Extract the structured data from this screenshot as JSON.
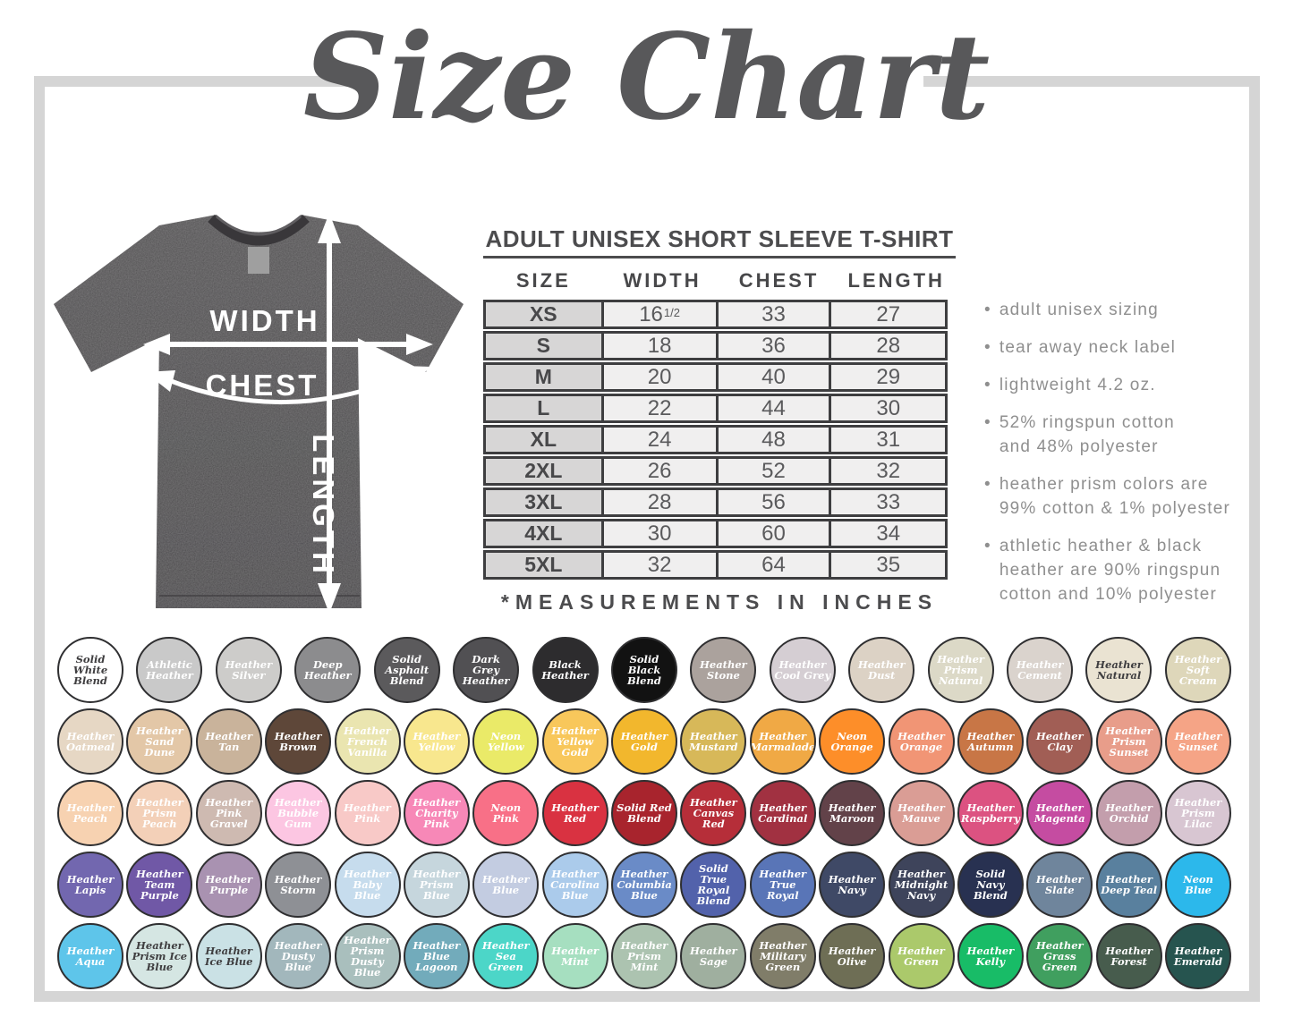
{
  "title": "Size Chart",
  "frame_color": "#d5d5d5",
  "diagram": {
    "width_label": "WIDTH",
    "chest_label": "CHEST",
    "length_label": "LENGTH"
  },
  "size_table": {
    "heading": "ADULT UNISEX SHORT SLEEVE T-SHIRT",
    "columns": [
      "SIZE",
      "WIDTH",
      "CHEST",
      "LENGTH"
    ],
    "rows": [
      [
        "XS",
        "16^1/2",
        "33",
        "27"
      ],
      [
        "S",
        "18",
        "36",
        "28"
      ],
      [
        "M",
        "20",
        "40",
        "29"
      ],
      [
        "L",
        "22",
        "44",
        "30"
      ],
      [
        "XL",
        "24",
        "48",
        "31"
      ],
      [
        "2XL",
        "26",
        "52",
        "32"
      ],
      [
        "3XL",
        "28",
        "56",
        "33"
      ],
      [
        "4XL",
        "30",
        "60",
        "34"
      ],
      [
        "5XL",
        "32",
        "64",
        "35"
      ]
    ],
    "footnote": "*MEASUREMENTS IN INCHES"
  },
  "features": [
    "adult unisex sizing",
    "tear away neck label",
    "lightweight 4.2 oz.",
    "52% ringspun cotton\nand 48% polyester",
    "heather prism colors are\n99% cotton & 1% polyester",
    "athletic heather &  black\nheather are 90% ringspun\ncotton and 10% polyester"
  ],
  "swatch_rows": [
    [
      {
        "n": "Solid White Blend",
        "c": "#ffffff",
        "t": "dark"
      },
      {
        "n": "Athletic Heather",
        "c": "#c9c9c9"
      },
      {
        "n": "Heather Silver",
        "c": "#cdccca"
      },
      {
        "n": "Deep Heather",
        "c": "#8c8c8e"
      },
      {
        "n": "Solid Asphalt Blend",
        "c": "#5b5a5c"
      },
      {
        "n": "Dark Grey Heather",
        "c": "#515053"
      },
      {
        "n": "Black Heather",
        "c": "#2d2c2e"
      },
      {
        "n": "Solid Black Blend",
        "c": "#121212"
      },
      {
        "n": "Heather Stone",
        "c": "#aba29d"
      },
      {
        "n": "Heather Cool Grey",
        "c": "#d5ced3"
      },
      {
        "n": "Heather Dust",
        "c": "#dcd2c5"
      },
      {
        "n": "Heather Prism Natural",
        "c": "#dcd9c7"
      },
      {
        "n": "Heather Cement",
        "c": "#dad3cd"
      },
      {
        "n": "Heather Natural",
        "c": "#eae3d2",
        "t": "dark"
      },
      {
        "n": "Heather Soft Cream",
        "c": "#ded7ba"
      }
    ],
    [
      {
        "n": "Heather Oatmeal",
        "c": "#e6d7c4"
      },
      {
        "n": "Heather Sand Dune",
        "c": "#e3c7a7"
      },
      {
        "n": "Heather Tan",
        "c": "#c9b39b"
      },
      {
        "n": "Heather Brown",
        "c": "#5e4739"
      },
      {
        "n": "Heather French Vanilla",
        "c": "#eae5b0"
      },
      {
        "n": "Heather Yellow",
        "c": "#f8e78e"
      },
      {
        "n": "Neon Yellow",
        "c": "#eaea68"
      },
      {
        "n": "Heather Yellow Gold",
        "c": "#f8c75b"
      },
      {
        "n": "Heather Gold",
        "c": "#f2b72d"
      },
      {
        "n": "Heather Mustard",
        "c": "#d7b859"
      },
      {
        "n": "Heather Marmalade",
        "c": "#f0a945"
      },
      {
        "n": "Neon Orange",
        "c": "#fd8e29"
      },
      {
        "n": "Heather Orange",
        "c": "#f19575"
      },
      {
        "n": "Heather Autumn",
        "c": "#c87646"
      },
      {
        "n": "Heather Clay",
        "c": "#a15e55"
      },
      {
        "n": "Heather Prism Sunset",
        "c": "#e89d8a"
      },
      {
        "n": "Heather Sunset",
        "c": "#f5a486"
      }
    ],
    [
      {
        "n": "Heather Peach",
        "c": "#f7d2b1"
      },
      {
        "n": "Heather Prism Peach",
        "c": "#f3d0b8"
      },
      {
        "n": "Heather Pink Gravel",
        "c": "#cebab1"
      },
      {
        "n": "Heather Bubble Gum",
        "c": "#fcc6e2"
      },
      {
        "n": "Heather Pink",
        "c": "#f8c9c7"
      },
      {
        "n": "Heather Charity Pink",
        "c": "#f788b7"
      },
      {
        "n": "Neon Pink",
        "c": "#f87087"
      },
      {
        "n": "Heather Red",
        "c": "#d93241"
      },
      {
        "n": "Solid Red Blend",
        "c": "#a8242d"
      },
      {
        "n": "Heather Canvas Red",
        "c": "#b62e39"
      },
      {
        "n": "Heather Cardinal",
        "c": "#a13141"
      },
      {
        "n": "Heather Maroon",
        "c": "#624249"
      },
      {
        "n": "Heather Mauve",
        "c": "#da9d95"
      },
      {
        "n": "Heather Raspberry",
        "c": "#dc5281"
      },
      {
        "n": "Heather Magenta",
        "c": "#c54ca1"
      },
      {
        "n": "Heather Orchid",
        "c": "#c39eac"
      },
      {
        "n": "Heather Prism Lilac",
        "c": "#d8c6d2"
      }
    ],
    [
      {
        "n": "Heather Lapis",
        "c": "#7267af"
      },
      {
        "n": "Heather Team Purple",
        "c": "#7058a6"
      },
      {
        "n": "Heather Purple",
        "c": "#a992b1"
      },
      {
        "n": "Heather Storm",
        "c": "#8e9095"
      },
      {
        "n": "Heather Baby Blue",
        "c": "#c6dced"
      },
      {
        "n": "Heather Prism Blue",
        "c": "#c6d6dd"
      },
      {
        "n": "Heather Blue",
        "c": "#c3cce1"
      },
      {
        "n": "Heather Carolina Blue",
        "c": "#abcbeb"
      },
      {
        "n": "Heather Columbia Blue",
        "c": "#6a8bc7"
      },
      {
        "n": "Solid True Royal Blend",
        "c": "#5262ab"
      },
      {
        "n": "Heather True Royal",
        "c": "#5975b7"
      },
      {
        "n": "Heather Navy",
        "c": "#3f4966"
      },
      {
        "n": "Heather Midnight Navy",
        "c": "#3e445b"
      },
      {
        "n": "Solid Navy Blend",
        "c": "#283151"
      },
      {
        "n": "Heather Slate",
        "c": "#6f859c"
      },
      {
        "n": "Heather Deep Teal",
        "c": "#59809e"
      },
      {
        "n": "Neon Blue",
        "c": "#2cb8eb"
      }
    ],
    [
      {
        "n": "Heather Aqua",
        "c": "#5ec5ea"
      },
      {
        "n": "Heather Prism Ice Blue",
        "c": "#d5e6e3",
        "t": "dark"
      },
      {
        "n": "Heather Ice Blue",
        "c": "#cae1e5",
        "t": "dark"
      },
      {
        "n": "Heather Dusty Blue",
        "c": "#a2b7bc"
      },
      {
        "n": "Heather Prism Dusty Blue",
        "c": "#a9bfbd"
      },
      {
        "n": "Heather Blue Lagoon",
        "c": "#72abbb"
      },
      {
        "n": "Heather Sea Green",
        "c": "#4cd6c8"
      },
      {
        "n": "Heather Mint",
        "c": "#a6dfc0"
      },
      {
        "n": "Heather Prism Mint",
        "c": "#acc3b0"
      },
      {
        "n": "Heather Sage",
        "c": "#9faf9f"
      },
      {
        "n": "Heather Military Green",
        "c": "#807d69"
      },
      {
        "n": "Heather Olive",
        "c": "#6e6e55"
      },
      {
        "n": "Heather Green",
        "c": "#abc96b"
      },
      {
        "n": "Heather Kelly",
        "c": "#18bc67"
      },
      {
        "n": "Heather Grass Green",
        "c": "#409f5f"
      },
      {
        "n": "Heather Forest",
        "c": "#475c4d"
      },
      {
        "n": "Heather Emerald",
        "c": "#26544f"
      }
    ]
  ]
}
